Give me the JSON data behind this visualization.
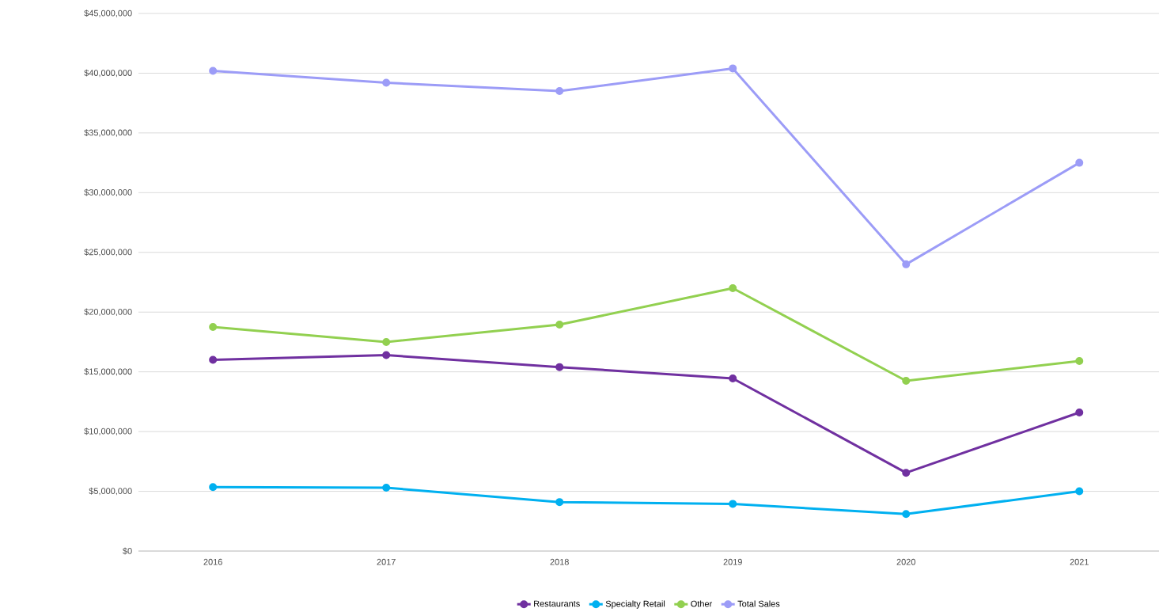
{
  "chart_data": {
    "type": "line",
    "categories": [
      "2016",
      "2017",
      "2018",
      "2019",
      "2020",
      "2021"
    ],
    "series": [
      {
        "name": "Restaurants",
        "color": "#7030a0",
        "values": [
          16000000,
          16400000,
          15400000,
          14450000,
          6550000,
          11600000
        ]
      },
      {
        "name": "Specialty Retail",
        "color": "#00b0f0",
        "values": [
          5350000,
          5300000,
          4100000,
          3950000,
          3100000,
          5000000
        ]
      },
      {
        "name": "Other",
        "color": "#92d050",
        "values": [
          18750000,
          17500000,
          18950000,
          22000000,
          14250000,
          15900000
        ]
      },
      {
        "name": "Total Sales",
        "color": "#9c9cf7",
        "values": [
          40200000,
          39200000,
          38500000,
          40400000,
          24000000,
          32500000
        ]
      }
    ],
    "ylim": [
      0,
      45000000
    ],
    "yticks": [
      {
        "value": 0,
        "label": "$0"
      },
      {
        "value": 5000000,
        "label": "$5,000,000"
      },
      {
        "value": 10000000,
        "label": "$10,000,000"
      },
      {
        "value": 15000000,
        "label": "$15,000,000"
      },
      {
        "value": 20000000,
        "label": "$20,000,000"
      },
      {
        "value": 25000000,
        "label": "$25,000,000"
      },
      {
        "value": 30000000,
        "label": "$30,000,000"
      },
      {
        "value": 35000000,
        "label": "$35,000,000"
      },
      {
        "value": 40000000,
        "label": "$40,000,000"
      },
      {
        "value": 45000000,
        "label": "$45,000,000"
      }
    ],
    "grid": "y",
    "legend": "bottom",
    "marker": "circle",
    "line_style": "solid"
  }
}
